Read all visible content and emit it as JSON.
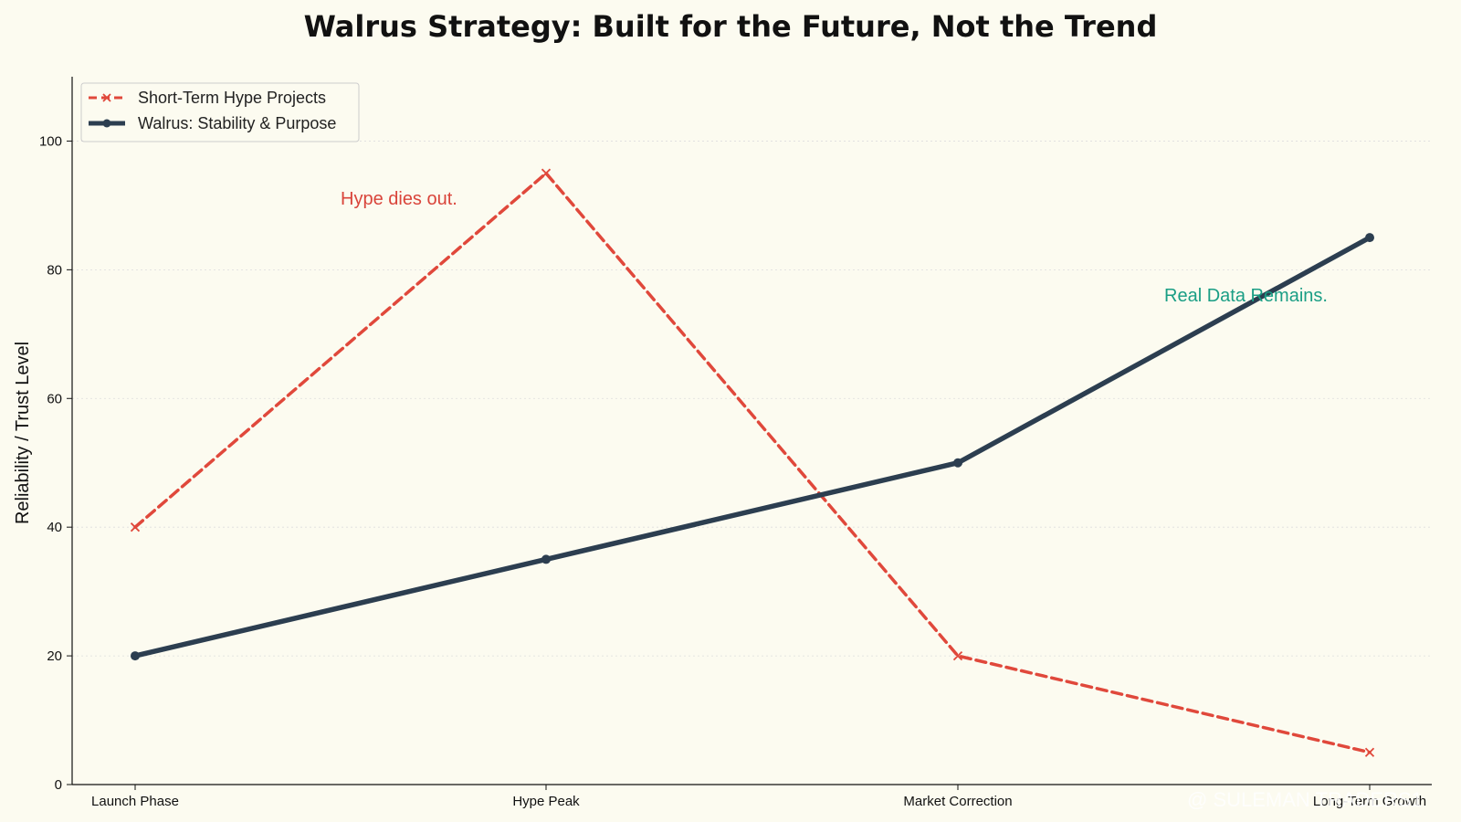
{
  "chart_data": {
    "type": "line",
    "title": "Walrus Strategy: Built for the Future, Not the Trend",
    "xlabel": "",
    "ylabel": "Reliability / Trust Level",
    "categories": [
      "Launch Phase",
      "Hype Peak",
      "Market Correction",
      "Long-Term Growth"
    ],
    "ylim": [
      0,
      110
    ],
    "yticks": [
      0,
      20,
      40,
      60,
      80,
      100
    ],
    "grid": "horizontal dotted",
    "legend_position": "top-left",
    "series": [
      {
        "name": "Short-Term Hype Projects",
        "values": [
          40,
          95,
          20,
          5
        ],
        "color": "#e0483b",
        "style": "dashed",
        "marker": "x"
      },
      {
        "name": "Walrus: Stability & Purpose",
        "values": [
          20,
          35,
          50,
          85
        ],
        "color": "#2c3e50",
        "style": "solid",
        "marker": "circle"
      }
    ],
    "annotations": [
      {
        "text": "Hype dies out.",
        "color": "#d9443a"
      },
      {
        "text": "Real Data Remains.",
        "color": "#1a9e85"
      }
    ]
  },
  "watermark": {
    "text": "@ SULEMAN TRADERS1"
  },
  "colors": {
    "background": "#fcfbf0",
    "grid": "#dddddd",
    "axis": "#111111"
  }
}
